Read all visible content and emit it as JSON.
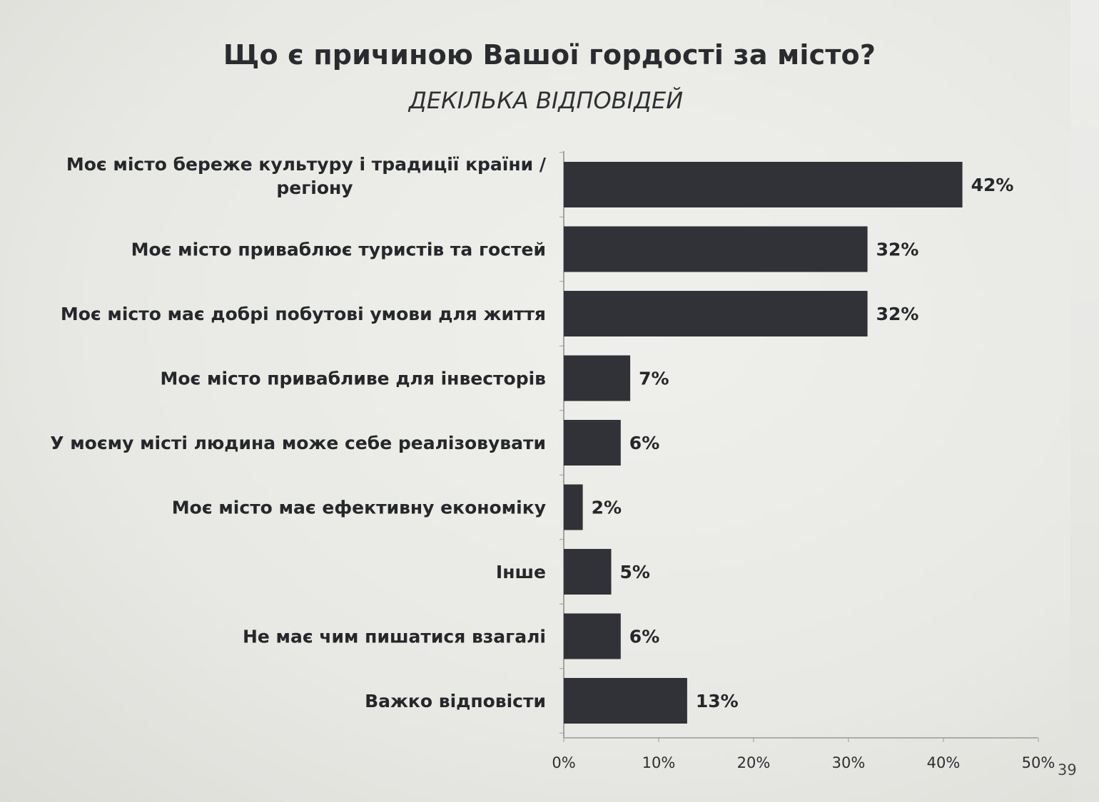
{
  "chart_data": {
    "type": "bar",
    "orientation": "horizontal",
    "title": "Що є причиною Вашої гордості за місто?",
    "subtitle": "ДЕКІЛЬКА ВІДПОВІДЕЙ",
    "categories": [
      [
        "Моє місто береже культуру і традиції країни /",
        "регіону"
      ],
      [
        "Моє місто приваблює туристів та гостей"
      ],
      [
        "Моє місто має добрі побутові умови для життя"
      ],
      [
        "Моє місто привабливе для інвесторів"
      ],
      [
        "У моєму місті людина може себе реалізовувати"
      ],
      [
        "Моє місто має ефективну економіку"
      ],
      [
        "Інше"
      ],
      [
        "Не має чим пишатися взагалі"
      ],
      [
        "Важко відповісти"
      ]
    ],
    "values": [
      42,
      32,
      32,
      7,
      6,
      2,
      5,
      6,
      13
    ],
    "value_labels": [
      "42%",
      "32%",
      "32%",
      "7%",
      "6%",
      "2%",
      "5%",
      "6%",
      "13%"
    ],
    "xlim": [
      0,
      50
    ],
    "xticks": [
      0,
      10,
      20,
      30,
      40,
      50
    ],
    "xtick_labels": [
      "0%",
      "10%",
      "20%",
      "30%",
      "40%",
      "50%"
    ],
    "bar_color": "#313237",
    "grid": false,
    "legend": "none"
  },
  "page_number": "39"
}
